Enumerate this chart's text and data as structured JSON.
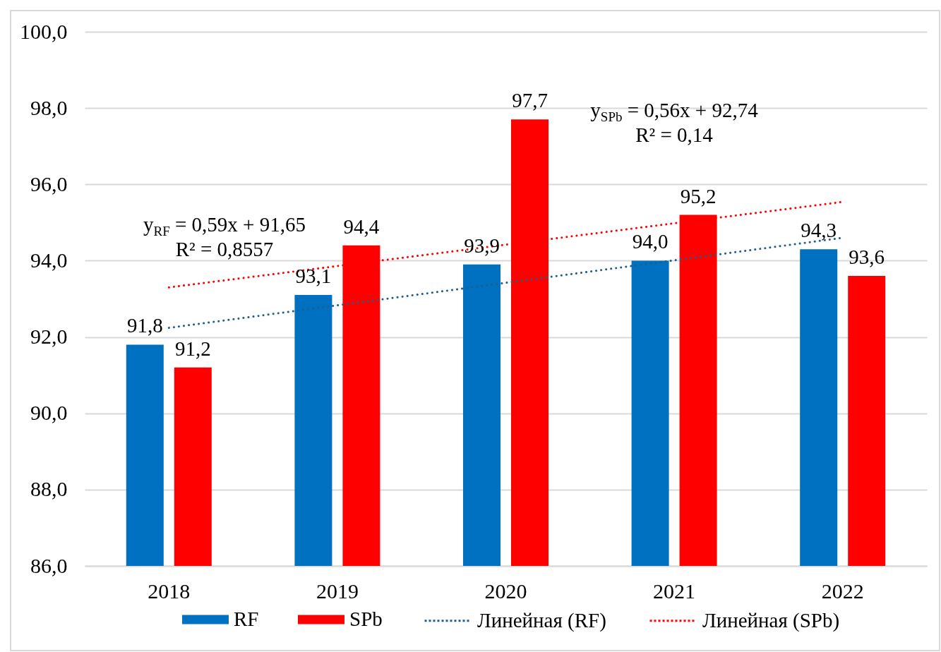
{
  "chart_data": {
    "type": "bar",
    "categories": [
      "2018",
      "2019",
      "2020",
      "2021",
      "2022"
    ],
    "series": [
      {
        "name": "RF",
        "color": "#0070c0",
        "values": [
          91.8,
          93.1,
          93.9,
          94.0,
          94.3
        ],
        "value_labels": [
          "91,8",
          "93,1",
          "93,9",
          "94,0",
          "94,3"
        ]
      },
      {
        "name": "SPb",
        "color": "#ff0000",
        "values": [
          91.2,
          94.4,
          97.7,
          95.2,
          93.6
        ],
        "value_labels": [
          "91,2",
          "94,4",
          "97,7",
          "95,2",
          "93,6"
        ]
      },
      {
        "name": "Линейная (RF)",
        "type": "line",
        "color": "#1f5f8b",
        "values": [
          92.24,
          92.83,
          93.42,
          94.01,
          94.6
        ]
      },
      {
        "name": "Линейная (SPb)",
        "type": "line",
        "color": "#ff0000",
        "values": [
          93.3,
          93.86,
          94.42,
          94.98,
          95.54
        ]
      }
    ],
    "ylim": [
      86,
      100
    ],
    "yticks": [
      {
        "value": 86,
        "label": "86,0"
      },
      {
        "value": 88,
        "label": "88,0"
      },
      {
        "value": 90,
        "label": "90,0"
      },
      {
        "value": 92,
        "label": "92,0"
      },
      {
        "value": 94,
        "label": "94,0"
      },
      {
        "value": 96,
        "label": "96,0"
      },
      {
        "value": 98,
        "label": "98,0"
      },
      {
        "value": 100,
        "label": "100,0"
      }
    ],
    "grid": "y",
    "legend": "bottom",
    "line_style": "dotted",
    "annotations": [
      "y$_{RF}$ = 0,59x + 91,65",
      "R² = 0,8557",
      "y$_{SPb}$ = 0,56x + 92,74",
      "R² = 0,14"
    ]
  }
}
